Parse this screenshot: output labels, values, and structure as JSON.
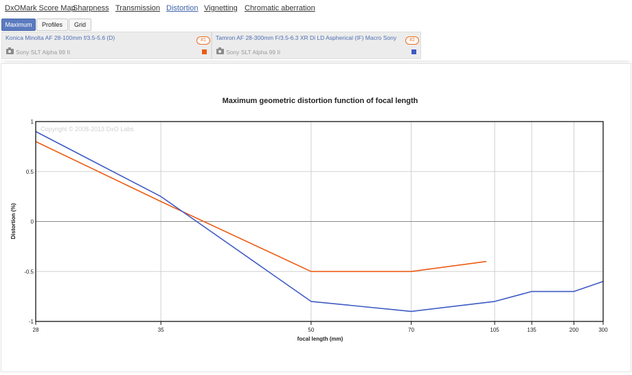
{
  "nav": {
    "items": [
      {
        "label": "DxOMark Score Map",
        "active": false
      },
      {
        "label": "Sharpness",
        "active": false
      },
      {
        "label": "Transmission",
        "active": false
      },
      {
        "label": "Distortion",
        "active": true
      },
      {
        "label": "Vignetting",
        "active": false
      },
      {
        "label": "Chromatic aberration",
        "active": false
      }
    ]
  },
  "view_buttons": [
    {
      "label": "Maximum",
      "active": true
    },
    {
      "label": "Profiles",
      "active": false
    },
    {
      "label": "Grid",
      "active": false
    }
  ],
  "lenses": [
    {
      "name": "Konica Minolta AF 28-100mm f/3.5-5.6 (D)",
      "badge": "#1",
      "camera": "Sony SLT Alpha 99 II",
      "color": "#ec5a10"
    },
    {
      "name": "Tamron AF 28-300mm F/3.5-6.3 XR Di LD Aspherical (IF) Macro Sony",
      "badge": "#2",
      "camera": "Sony SLT Alpha 99 II",
      "color": "#3d5ac4"
    }
  ],
  "icons": {
    "camera": "camera-icon"
  },
  "chart_data": {
    "type": "line",
    "title": "Maximum geometric distortion function of focal length",
    "watermark": "Copyright © 2008-2013 DxO Labs",
    "xlabel": "focal length (mm)",
    "ylabel": "Distortion (%)",
    "x_scale": "reciprocal",
    "xlim": [
      28,
      300
    ],
    "ylim": [
      -1,
      1
    ],
    "x_ticks": [
      28,
      35,
      50,
      70,
      105,
      135,
      200,
      300
    ],
    "y_ticks": [
      1,
      0.5,
      0,
      -0.5,
      -1
    ],
    "grid": true,
    "series": [
      {
        "name": "Konica Minolta AF 28-100mm f/3.5-5.6 (D)",
        "color": "#ec5a10",
        "x": [
          28,
          35,
          50,
          70,
          100
        ],
        "y": [
          0.8,
          0.2,
          -0.5,
          -0.5,
          -0.4
        ]
      },
      {
        "name": "Tamron AF 28-300mm F/3.5-6.3 XR Di LD Aspherical (IF) Macro Sony",
        "color": "#3d5ac4",
        "x": [
          28,
          35,
          50,
          70,
          105,
          135,
          200,
          300
        ],
        "y": [
          0.9,
          0.25,
          -0.8,
          -0.9,
          -0.8,
          -0.7,
          -0.7,
          -0.6
        ]
      }
    ]
  }
}
